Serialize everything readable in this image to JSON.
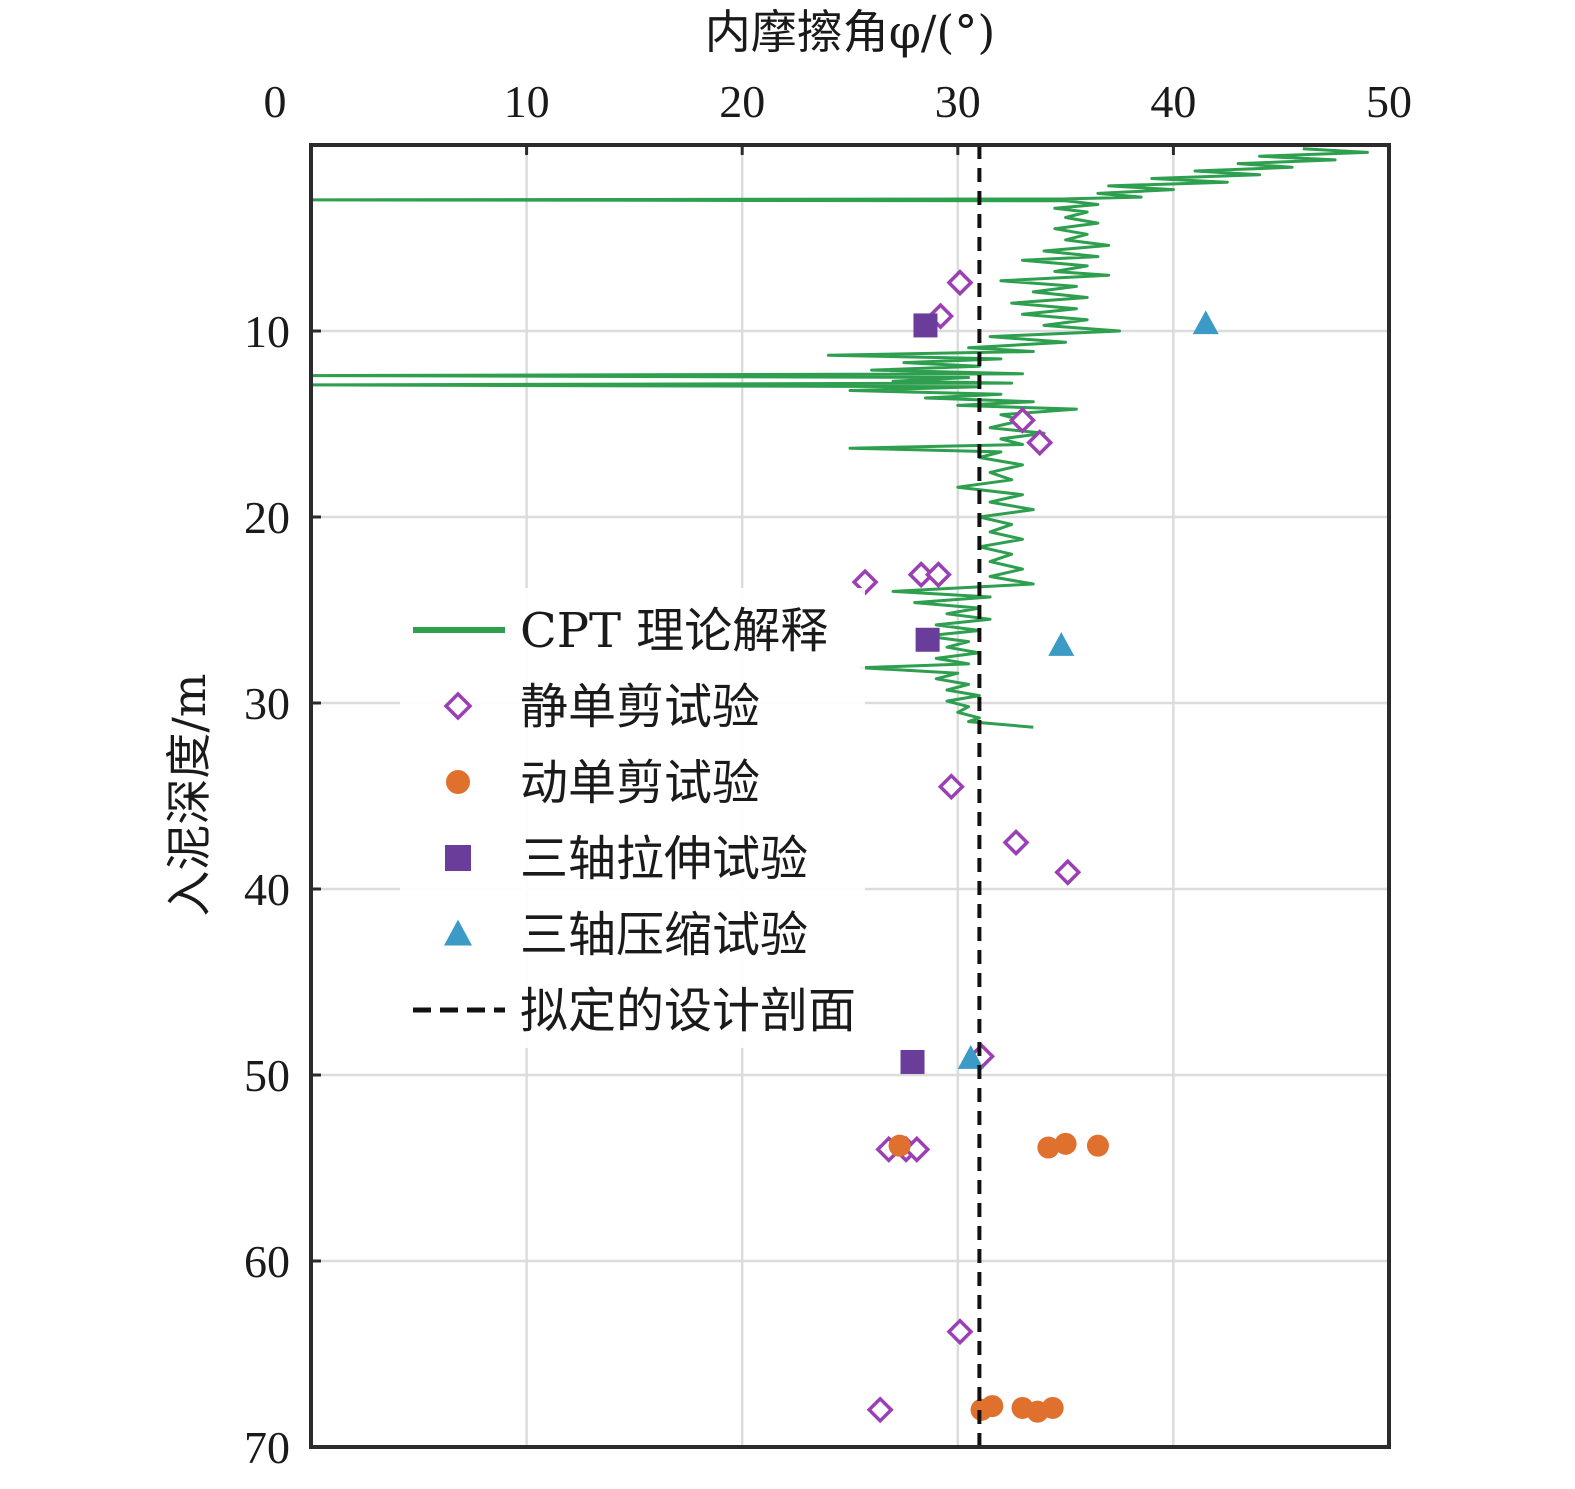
{
  "chart_data": {
    "type": "scatter",
    "xlabel": "内摩擦角φ/(°)",
    "ylabel": "入泥深度/m",
    "x_ticks": [
      "0",
      "10",
      "20",
      "30",
      "40",
      "50"
    ],
    "y_ticks": [
      "10",
      "20",
      "30",
      "40",
      "50",
      "60",
      "70"
    ],
    "xlim": [
      0,
      50
    ],
    "ylim": [
      0,
      70
    ],
    "y_inverted": true,
    "x_axis_position": "top",
    "grid": true,
    "legend_position": "center-left",
    "series": [
      {
        "name": "CPT 理论解释",
        "kind": "line",
        "color": "#2e9e4f",
        "points": [
          [
            46.0,
            0.2
          ],
          [
            49.0,
            0.4
          ],
          [
            44.0,
            0.6
          ],
          [
            47.5,
            0.8
          ],
          [
            43.0,
            1.0
          ],
          [
            45.5,
            1.2
          ],
          [
            41.0,
            1.4
          ],
          [
            44.0,
            1.6
          ],
          [
            39.0,
            1.8
          ],
          [
            42.5,
            2.0
          ],
          [
            37.0,
            2.2
          ],
          [
            40.0,
            2.4
          ],
          [
            36.5,
            2.6
          ],
          [
            38.5,
            2.8
          ],
          [
            35.0,
            2.9
          ],
          [
            0.0,
            2.95
          ],
          [
            35.0,
            3.0
          ],
          [
            36.5,
            3.2
          ],
          [
            34.5,
            3.4
          ],
          [
            36.0,
            3.6
          ],
          [
            35.0,
            3.9
          ],
          [
            36.5,
            4.2
          ],
          [
            34.5,
            4.5
          ],
          [
            36.0,
            4.8
          ],
          [
            35.0,
            5.1
          ],
          [
            37.0,
            5.4
          ],
          [
            34.0,
            5.7
          ],
          [
            36.5,
            6.0
          ],
          [
            33.0,
            6.2
          ],
          [
            36.0,
            6.5
          ],
          [
            34.5,
            6.8
          ],
          [
            37.0,
            7.0
          ],
          [
            32.0,
            7.3
          ],
          [
            35.5,
            7.6
          ],
          [
            33.5,
            7.9
          ],
          [
            36.0,
            8.2
          ],
          [
            32.5,
            8.5
          ],
          [
            35.5,
            8.8
          ],
          [
            33.0,
            9.1
          ],
          [
            36.0,
            9.4
          ],
          [
            34.0,
            9.7
          ],
          [
            37.5,
            10.0
          ],
          [
            31.5,
            10.3
          ],
          [
            35.0,
            10.6
          ],
          [
            30.5,
            10.9
          ],
          [
            33.5,
            11.1
          ],
          [
            24.0,
            11.3
          ],
          [
            32.0,
            11.5
          ],
          [
            27.5,
            11.7
          ],
          [
            31.0,
            11.9
          ],
          [
            26.0,
            12.1
          ],
          [
            33.0,
            12.3
          ],
          [
            0.0,
            12.4
          ],
          [
            30.5,
            12.5
          ],
          [
            27.0,
            12.7
          ],
          [
            32.5,
            12.8
          ],
          [
            0.0,
            12.9
          ],
          [
            31.0,
            13.0
          ],
          [
            25.0,
            13.2
          ],
          [
            32.0,
            13.4
          ],
          [
            28.5,
            13.6
          ],
          [
            33.5,
            13.8
          ],
          [
            30.0,
            14.0
          ],
          [
            35.5,
            14.2
          ],
          [
            32.0,
            14.5
          ],
          [
            33.0,
            14.8
          ],
          [
            31.5,
            15.2
          ],
          [
            34.0,
            15.5
          ],
          [
            32.0,
            15.8
          ],
          [
            33.0,
            16.1
          ],
          [
            25.0,
            16.3
          ],
          [
            32.0,
            16.5
          ],
          [
            31.0,
            16.8
          ],
          [
            33.0,
            17.2
          ],
          [
            31.5,
            17.6
          ],
          [
            32.5,
            18.0
          ],
          [
            30.0,
            18.4
          ],
          [
            33.0,
            18.8
          ],
          [
            31.5,
            19.2
          ],
          [
            33.5,
            19.6
          ],
          [
            31.0,
            20.0
          ],
          [
            32.5,
            20.4
          ],
          [
            31.5,
            20.8
          ],
          [
            33.0,
            21.2
          ],
          [
            31.0,
            21.6
          ],
          [
            32.5,
            22.0
          ],
          [
            31.5,
            22.4
          ],
          [
            33.0,
            22.8
          ],
          [
            31.5,
            23.2
          ],
          [
            33.5,
            23.6
          ],
          [
            27.0,
            24.0
          ],
          [
            31.5,
            24.3
          ],
          [
            28.0,
            24.6
          ],
          [
            31.0,
            24.9
          ],
          [
            29.5,
            25.2
          ],
          [
            31.5,
            25.5
          ],
          [
            29.0,
            25.8
          ],
          [
            31.0,
            26.1
          ],
          [
            28.5,
            26.4
          ],
          [
            30.5,
            26.7
          ],
          [
            29.5,
            27.0
          ],
          [
            31.0,
            27.3
          ],
          [
            29.0,
            27.6
          ],
          [
            30.5,
            27.9
          ],
          [
            25.5,
            28.1
          ],
          [
            30.0,
            28.4
          ],
          [
            29.0,
            28.7
          ],
          [
            30.5,
            29.0
          ],
          [
            29.5,
            29.3
          ],
          [
            31.0,
            29.6
          ],
          [
            29.5,
            29.9
          ],
          [
            30.5,
            30.2
          ],
          [
            30.0,
            30.5
          ],
          [
            31.0,
            30.8
          ],
          [
            30.5,
            31.0
          ],
          [
            33.5,
            31.3
          ]
        ]
      },
      {
        "name": "静单剪试验",
        "kind": "scatter",
        "marker": "diamond-open",
        "color": "#9b3fb5",
        "points": [
          [
            30.1,
            7.4
          ],
          [
            29.2,
            9.2
          ],
          [
            33.0,
            14.8
          ],
          [
            33.8,
            16.0
          ],
          [
            25.7,
            23.5
          ],
          [
            28.3,
            23.1
          ],
          [
            29.1,
            23.1
          ],
          [
            29.7,
            34.5
          ],
          [
            32.7,
            37.5
          ],
          [
            35.1,
            39.1
          ],
          [
            31.1,
            49.0
          ],
          [
            26.8,
            54.0
          ],
          [
            27.6,
            54.0
          ],
          [
            28.1,
            54.0
          ],
          [
            30.1,
            63.8
          ],
          [
            26.4,
            68.0
          ]
        ]
      },
      {
        "name": "动单剪试验",
        "kind": "scatter",
        "marker": "circle",
        "color": "#e0702d",
        "points": [
          [
            27.3,
            53.8
          ],
          [
            34.2,
            53.9
          ],
          [
            35.0,
            53.7
          ],
          [
            36.5,
            53.8
          ],
          [
            31.1,
            68.0
          ],
          [
            31.6,
            67.8
          ],
          [
            33.0,
            67.9
          ],
          [
            33.7,
            68.1
          ],
          [
            34.4,
            67.9
          ]
        ]
      },
      {
        "name": "三轴拉伸试验",
        "kind": "scatter",
        "marker": "square",
        "color": "#6a3d9a",
        "points": [
          [
            28.5,
            9.7
          ],
          [
            28.6,
            26.6
          ],
          [
            27.9,
            49.3
          ]
        ]
      },
      {
        "name": "三轴压缩试验",
        "kind": "scatter",
        "marker": "triangle",
        "color": "#3b9ac6",
        "points": [
          [
            41.5,
            9.6
          ],
          [
            34.8,
            26.9
          ],
          [
            30.6,
            49.1
          ]
        ]
      },
      {
        "name": "拟定的设计剖面",
        "kind": "line",
        "dashed": true,
        "color": "#111111",
        "points": [
          [
            31.0,
            0
          ],
          [
            31.0,
            70
          ]
        ]
      }
    ]
  }
}
